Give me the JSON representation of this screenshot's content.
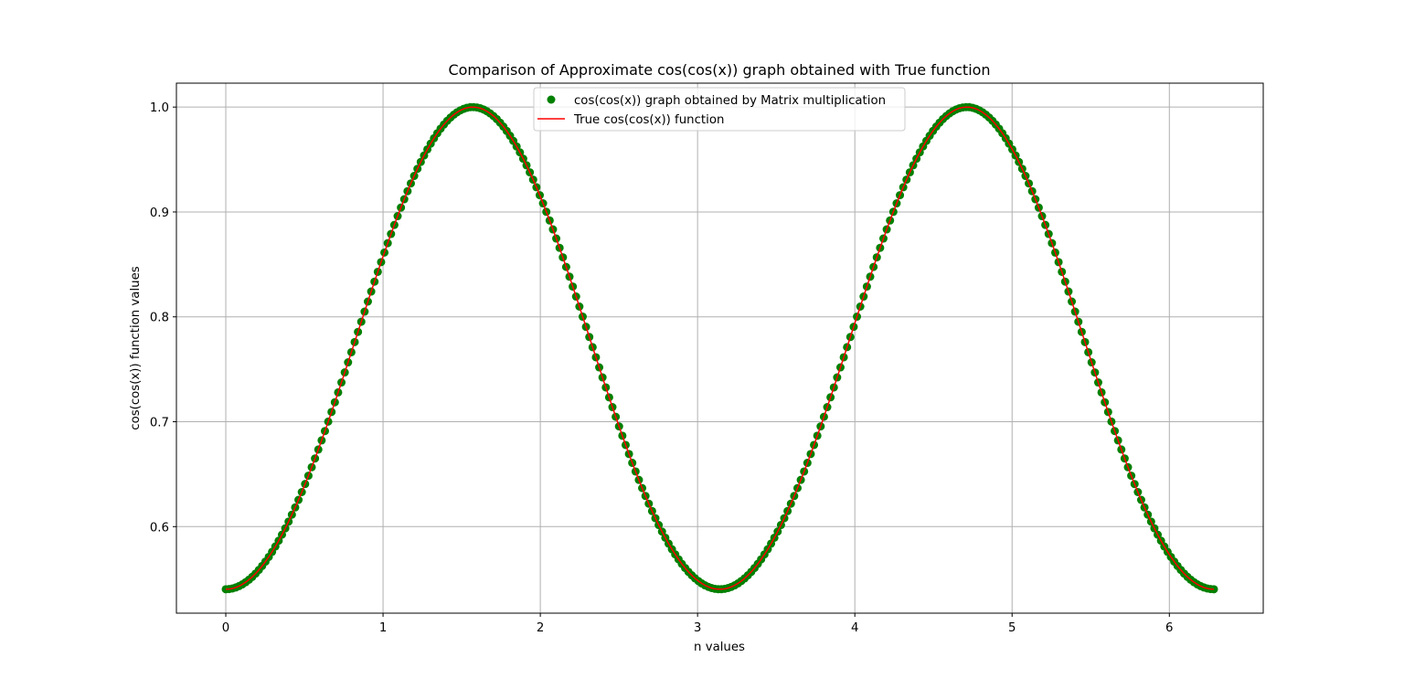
{
  "chart_data": {
    "type": "scatter",
    "title": "Comparison of Approximate cos(cos(x)) graph obtained with True function",
    "xlabel": "n values",
    "ylabel": "cos(cos(x)) function values",
    "xlim": [
      -0.314,
      6.597
    ],
    "ylim": [
      0.5175,
      1.0228
    ],
    "xticks": [
      0,
      1,
      2,
      3,
      4,
      5,
      6
    ],
    "xtick_labels": [
      "0",
      "1",
      "2",
      "3",
      "4",
      "5",
      "6"
    ],
    "yticks": [
      0.6,
      0.7,
      0.8,
      0.9,
      1.0
    ],
    "ytick_labels": [
      "0.6",
      "0.7",
      "0.8",
      "0.9",
      "1.0"
    ],
    "grid": true,
    "legend_position": "upper center",
    "x": {
      "start": 0,
      "end": 6.2832,
      "count": 300
    },
    "series": [
      {
        "name": "cos(cos(x)) graph obtained by Matrix multiplication",
        "kind": "scatter",
        "marker": "circle",
        "color": "#008000",
        "function": "cos(cos(x))"
      },
      {
        "name": "True cos(cos(x)) function",
        "kind": "line",
        "color": "#ff0000",
        "function": "cos(cos(x))"
      }
    ]
  },
  "colors": {
    "axes": "#000000",
    "grid": "#b0b0b0",
    "legend_border": "#cccccc"
  }
}
